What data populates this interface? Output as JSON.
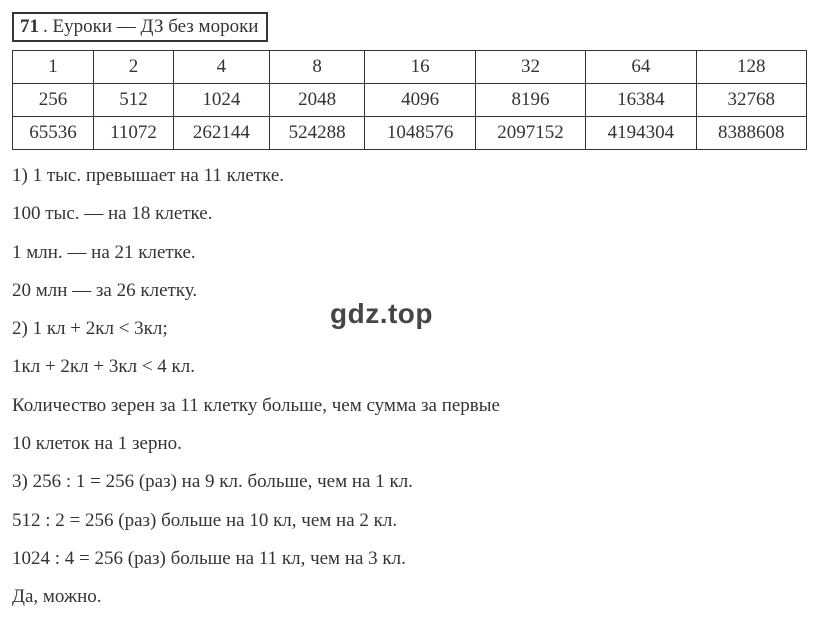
{
  "header": {
    "number": "71",
    "text": ". Еуроки  —  ДЗ без мороки"
  },
  "table": {
    "rows": [
      [
        "1",
        "2",
        "4",
        "8",
        "16",
        "32",
        "64",
        "128"
      ],
      [
        "256",
        "512",
        "1024",
        "2048",
        "4096",
        "8196",
        "16384",
        "32768"
      ],
      [
        "65536",
        "11072",
        "262144",
        "524288",
        "1048576",
        "2097152",
        "4194304",
        "8388608"
      ]
    ]
  },
  "lines": [
    "1) 1 тыс. превышает на 11 клетке.",
    "100 тыс. — на 18 клетке.",
    "1 млн. — на 21 клетке.",
    "20 млн — за 26 клетку.",
    "2) 1 кл + 2кл < 3кл;",
    "1кл + 2кл + 3кл < 4 кл.",
    "Количество зерен за 11 клетку больше, чем сумма за первые",
    "10 клеток на 1 зерно.",
    "3) 256 : 1 = 256 (раз) на 9 кл. больше, чем на 1 кл.",
    "512 : 2 = 256 (раз) больше на 10 кл, чем на 2 кл.",
    "1024 : 4 = 256 (раз) больше на 11 кл, чем на 3 кл.",
    "Да, можно."
  ],
  "watermark": "gdz.top"
}
